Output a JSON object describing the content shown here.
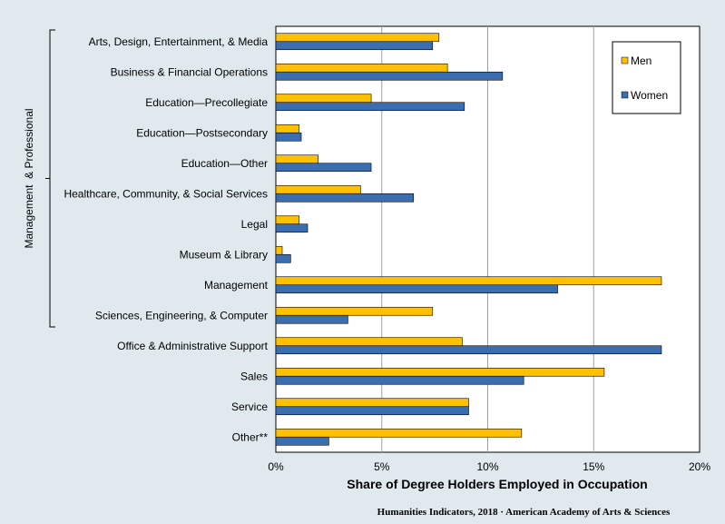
{
  "chart_data": {
    "type": "bar",
    "orientation": "horizontal",
    "categories": [
      "Arts, Design, Entertainment, & Media",
      "Business & Financial Operations",
      "Education—Precollegiate",
      "Education—Postsecondary",
      "Education—Other",
      "Healthcare, Community, & Social Services",
      "Legal",
      "Museum & Library",
      "Management",
      "Sciences, Engineering, & Computer",
      "Office & Administrative Support",
      "Sales",
      "Service",
      "Other**"
    ],
    "series": [
      {
        "name": "Men",
        "color": "#ffc000",
        "values": [
          7.7,
          8.1,
          4.5,
          1.1,
          2.0,
          4.0,
          1.1,
          0.3,
          18.2,
          7.4,
          8.8,
          15.5,
          9.1,
          11.6
        ]
      },
      {
        "name": "Women",
        "color": "#3a6eb0",
        "values": [
          7.4,
          10.7,
          8.9,
          1.2,
          4.5,
          6.5,
          1.5,
          0.7,
          13.3,
          3.4,
          18.2,
          11.7,
          9.1,
          2.5
        ]
      }
    ],
    "xlim": [
      0,
      20
    ],
    "x_ticks": [
      "0%",
      "5%",
      "10%",
      "15%",
      "20%"
    ],
    "x_tick_values": [
      0,
      5,
      10,
      15,
      20
    ],
    "xlabel": "Share of Degree Holders Employed in Occupation",
    "ylabel": "",
    "grid": "vertical",
    "legend_position": "top-right",
    "group_label": "Management  & Professional",
    "group_span": [
      0,
      9
    ]
  },
  "source_note": "Humanities Indicators, 2018 · American Academy of Arts & Sciences",
  "colors": {
    "background": "#dfe9ee",
    "plot_background": "#ffffff",
    "grid": "#a0a0a0"
  }
}
